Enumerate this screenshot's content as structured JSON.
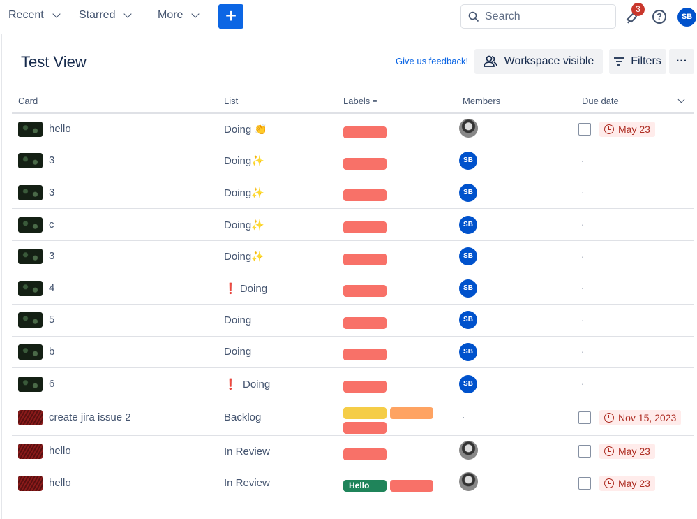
{
  "topbar": {
    "nav": [
      "Recent",
      "Starred",
      "More"
    ],
    "create_label": "+",
    "search_placeholder": "Search",
    "notification_count": "3",
    "help": "?",
    "user_initials": "SB"
  },
  "header": {
    "title": "Test View",
    "feedback": "Give us feedback!",
    "workspace": "Workspace visible",
    "filters": "Filters",
    "more": "···"
  },
  "columns": {
    "card": "Card",
    "list": "List",
    "labels": "Labels",
    "members": "Members",
    "due": "Due date"
  },
  "colors": {
    "red": "#f87168",
    "yellow": "#f5cd47",
    "orange": "#fea362",
    "green": "#1f845a"
  },
  "rows": [
    {
      "card": "hello",
      "thumb": "green",
      "list": "Doing 👏",
      "labels": [
        {
          "color": "red"
        }
      ],
      "member": "photo",
      "due": "May 23"
    },
    {
      "card": "3",
      "thumb": "green",
      "list": "Doing✨",
      "labels": [
        {
          "color": "red"
        }
      ],
      "member": "SB",
      "due": ""
    },
    {
      "card": "3",
      "thumb": "green",
      "list": "Doing✨",
      "labels": [
        {
          "color": "red"
        }
      ],
      "member": "SB",
      "due": ""
    },
    {
      "card": "c",
      "thumb": "green",
      "list": "Doing✨",
      "labels": [
        {
          "color": "red"
        }
      ],
      "member": "SB",
      "due": ""
    },
    {
      "card": "3",
      "thumb": "green",
      "list": "Doing✨",
      "labels": [
        {
          "color": "red"
        }
      ],
      "member": "SB",
      "due": ""
    },
    {
      "card": "4",
      "thumb": "green",
      "list": "❗ Doing",
      "labels": [
        {
          "color": "red"
        }
      ],
      "member": "SB",
      "due": ""
    },
    {
      "card": "5",
      "thumb": "green",
      "list": "Doing",
      "labels": [
        {
          "color": "red"
        }
      ],
      "member": "SB",
      "due": ""
    },
    {
      "card": "b",
      "thumb": "green",
      "list": "Doing",
      "labels": [
        {
          "color": "red"
        }
      ],
      "member": "SB",
      "due": ""
    },
    {
      "card": "6",
      "thumb": "green",
      "list": "❗  Doing",
      "labels": [
        {
          "color": "red"
        }
      ],
      "member": "SB",
      "due": ""
    },
    {
      "card": "create jira issue 2",
      "thumb": "red",
      "list": "Backlog",
      "labels": [
        {
          "color": "yellow"
        },
        {
          "color": "orange"
        },
        {
          "color": "red"
        }
      ],
      "member": "",
      "due": "Nov 15, 2023"
    },
    {
      "card": "hello",
      "thumb": "red",
      "list": "In Review",
      "labels": [
        {
          "color": "red"
        }
      ],
      "member": "photo",
      "due": "May 23"
    },
    {
      "card": "hello",
      "thumb": "red",
      "list": "In Review",
      "labels": [
        {
          "color": "green",
          "text": "Hello"
        },
        {
          "color": "red"
        }
      ],
      "member": "photo",
      "due": "May 23"
    }
  ]
}
